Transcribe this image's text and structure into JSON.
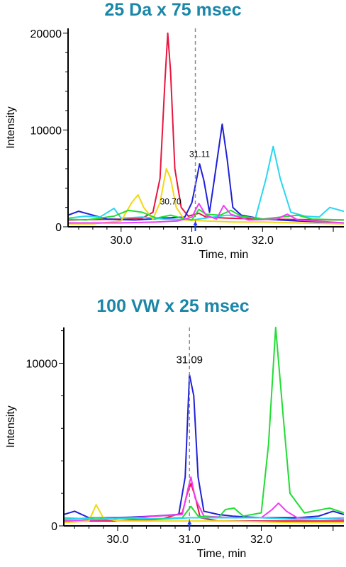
{
  "chart_data": [
    {
      "type": "line",
      "title": "25 Da x 75 msec",
      "xlabel": "Time, min",
      "ylabel": "Intensity",
      "xlim": [
        29.25,
        33.15
      ],
      "ylim": [
        0,
        20500
      ],
      "x_ticks": [
        30.0,
        31.0,
        32.0
      ],
      "x_tick_labels": [
        "30.0",
        "31.0",
        "32.0"
      ],
      "y_ticks": [
        0,
        10000,
        20000
      ],
      "y_tick_labels": [
        "0",
        "10000",
        "20000"
      ],
      "marker_x": 31.05,
      "annotations": [
        {
          "text": "31.11",
          "x": 31.11,
          "y": 7200
        },
        {
          "text": "30.70",
          "x": 30.7,
          "y": 2300
        }
      ],
      "grid": false,
      "series": [
        {
          "color": "#e8163f",
          "points": [
            [
              29.25,
              700
            ],
            [
              29.6,
              750
            ],
            [
              30.0,
              800
            ],
            [
              30.3,
              900
            ],
            [
              30.45,
              1500
            ],
            [
              30.55,
              5000
            ],
            [
              30.62,
              15000
            ],
            [
              30.66,
              20000
            ],
            [
              30.7,
              16000
            ],
            [
              30.76,
              6000
            ],
            [
              30.85,
              2000
            ],
            [
              30.95,
              1100
            ],
            [
              31.1,
              1400
            ],
            [
              31.2,
              1000
            ],
            [
              31.5,
              900
            ],
            [
              32.0,
              800
            ],
            [
              32.5,
              750
            ],
            [
              33.15,
              700
            ]
          ]
        },
        {
          "color": "#2020d8",
          "points": [
            [
              29.25,
              1200
            ],
            [
              29.4,
              1600
            ],
            [
              29.55,
              1300
            ],
            [
              29.8,
              800
            ],
            [
              30.2,
              700
            ],
            [
              30.6,
              900
            ],
            [
              30.9,
              1000
            ],
            [
              31.0,
              2500
            ],
            [
              31.07,
              5000
            ],
            [
              31.11,
              6500
            ],
            [
              31.17,
              4800
            ],
            [
              31.25,
              1500
            ],
            [
              31.32,
              5000
            ],
            [
              31.43,
              10600
            ],
            [
              31.5,
              7000
            ],
            [
              31.58,
              2000
            ],
            [
              31.7,
              1200
            ],
            [
              32.0,
              800
            ],
            [
              32.5,
              600
            ],
            [
              33.15,
              400
            ]
          ]
        },
        {
          "color": "#2ad6f0",
          "points": [
            [
              29.25,
              900
            ],
            [
              29.5,
              1100
            ],
            [
              29.7,
              1000
            ],
            [
              29.9,
              1900
            ],
            [
              30.0,
              900
            ],
            [
              30.3,
              1000
            ],
            [
              30.6,
              800
            ],
            [
              31.0,
              700
            ],
            [
              31.5,
              1200
            ],
            [
              31.9,
              900
            ],
            [
              32.05,
              5000
            ],
            [
              32.15,
              8300
            ],
            [
              32.25,
              5000
            ],
            [
              32.4,
              1500
            ],
            [
              32.6,
              1100
            ],
            [
              32.8,
              1000
            ],
            [
              32.95,
              2000
            ],
            [
              33.15,
              1600
            ]
          ]
        },
        {
          "color": "#f5d712",
          "points": [
            [
              29.25,
              300
            ],
            [
              29.6,
              300
            ],
            [
              30.0,
              600
            ],
            [
              30.15,
              2500
            ],
            [
              30.24,
              3300
            ],
            [
              30.32,
              2000
            ],
            [
              30.45,
              800
            ],
            [
              30.55,
              2500
            ],
            [
              30.64,
              6000
            ],
            [
              30.7,
              5000
            ],
            [
              30.78,
              2000
            ],
            [
              30.9,
              700
            ],
            [
              31.2,
              600
            ],
            [
              31.6,
              500
            ],
            [
              32.0,
              500
            ],
            [
              32.5,
              400
            ],
            [
              33.15,
              300
            ]
          ]
        },
        {
          "color": "#22dd33",
          "points": [
            [
              29.25,
              800
            ],
            [
              29.5,
              700
            ],
            [
              29.9,
              1100
            ],
            [
              30.1,
              1700
            ],
            [
              30.3,
              1500
            ],
            [
              30.5,
              900
            ],
            [
              30.7,
              1200
            ],
            [
              30.85,
              900
            ],
            [
              31.0,
              700
            ],
            [
              31.1,
              1800
            ],
            [
              31.2,
              1300
            ],
            [
              31.4,
              1200
            ],
            [
              31.55,
              1700
            ],
            [
              31.7,
              1100
            ],
            [
              32.0,
              800
            ],
            [
              32.5,
              1200
            ],
            [
              32.7,
              800
            ],
            [
              33.15,
              700
            ]
          ]
        },
        {
          "color": "#f23bf5",
          "points": [
            [
              29.25,
              400
            ],
            [
              29.6,
              400
            ],
            [
              30.0,
              400
            ],
            [
              30.5,
              500
            ],
            [
              30.8,
              600
            ],
            [
              31.0,
              1000
            ],
            [
              31.1,
              2400
            ],
            [
              31.2,
              1200
            ],
            [
              31.35,
              800
            ],
            [
              31.45,
              2200
            ],
            [
              31.55,
              1300
            ],
            [
              31.8,
              700
            ],
            [
              32.2,
              800
            ],
            [
              32.35,
              1300
            ],
            [
              32.5,
              700
            ],
            [
              33.15,
              400
            ]
          ]
        }
      ]
    },
    {
      "type": "line",
      "title": "100 VW x 25 msec",
      "xlabel": "Time, min",
      "ylabel": "Intensity",
      "xlim": [
        29.25,
        33.15
      ],
      "ylim": [
        0,
        12200
      ],
      "x_ticks": [
        30.0,
        31.0,
        32.0
      ],
      "x_tick_labels": [
        "30.0",
        "31.0",
        "32.0"
      ],
      "y_ticks": [
        0,
        10000
      ],
      "y_tick_labels": [
        "0",
        "10000"
      ],
      "marker_x": 31.0,
      "annotations": [
        {
          "text": "31.09",
          "x": 31.0,
          "y": 10000
        }
      ],
      "grid": false,
      "series": [
        {
          "color": "#2020d8",
          "points": [
            [
              29.25,
              700
            ],
            [
              29.4,
              900
            ],
            [
              29.6,
              500
            ],
            [
              30.0,
              500
            ],
            [
              30.5,
              600
            ],
            [
              30.85,
              700
            ],
            [
              30.94,
              3000
            ],
            [
              31.0,
              9300
            ],
            [
              31.06,
              8000
            ],
            [
              31.12,
              3000
            ],
            [
              31.2,
              900
            ],
            [
              31.4,
              700
            ],
            [
              31.6,
              600
            ],
            [
              32.0,
              500
            ],
            [
              32.5,
              500
            ],
            [
              32.8,
              600
            ],
            [
              33.0,
              900
            ],
            [
              33.15,
              700
            ]
          ]
        },
        {
          "color": "#e8163f",
          "points": [
            [
              29.25,
              300
            ],
            [
              30.0,
              300
            ],
            [
              30.6,
              400
            ],
            [
              30.9,
              800
            ],
            [
              30.97,
              2000
            ],
            [
              31.02,
              2600
            ],
            [
              31.08,
              1800
            ],
            [
              31.15,
              500
            ],
            [
              31.4,
              300
            ],
            [
              32.0,
              300
            ],
            [
              32.5,
              300
            ],
            [
              33.15,
              300
            ]
          ]
        },
        {
          "color": "#f23bf5",
          "points": [
            [
              29.25,
              300
            ],
            [
              29.9,
              400
            ],
            [
              30.9,
              700
            ],
            [
              30.98,
              2300
            ],
            [
              31.02,
              3000
            ],
            [
              31.08,
              1700
            ],
            [
              31.2,
              600
            ],
            [
              31.6,
              500
            ],
            [
              32.0,
              500
            ],
            [
              32.15,
              1000
            ],
            [
              32.24,
              1400
            ],
            [
              32.35,
              900
            ],
            [
              32.5,
              500
            ],
            [
              33.15,
              400
            ]
          ]
        },
        {
          "color": "#f5d712",
          "points": [
            [
              29.25,
              200
            ],
            [
              29.6,
              300
            ],
            [
              29.7,
              1300
            ],
            [
              29.8,
              500
            ],
            [
              30.0,
              300
            ],
            [
              30.5,
              300
            ],
            [
              31.0,
              300
            ],
            [
              31.5,
              300
            ],
            [
              32.0,
              250
            ],
            [
              32.5,
              200
            ],
            [
              33.15,
              200
            ]
          ]
        },
        {
          "color": "#22dd33",
          "points": [
            [
              29.25,
              400
            ],
            [
              29.7,
              500
            ],
            [
              30.3,
              400
            ],
            [
              30.9,
              500
            ],
            [
              31.02,
              1200
            ],
            [
              31.12,
              600
            ],
            [
              31.4,
              500
            ],
            [
              31.5,
              1000
            ],
            [
              31.62,
              1100
            ],
            [
              31.75,
              600
            ],
            [
              32.0,
              800
            ],
            [
              32.1,
              5000
            ],
            [
              32.2,
              12200
            ],
            [
              32.3,
              7000
            ],
            [
              32.4,
              2000
            ],
            [
              32.6,
              800
            ],
            [
              32.95,
              1100
            ],
            [
              33.15,
              800
            ]
          ]
        },
        {
          "color": "#2ad6f0",
          "points": [
            [
              29.25,
              500
            ],
            [
              29.7,
              400
            ],
            [
              30.2,
              500
            ],
            [
              30.6,
              400
            ],
            [
              31.0,
              500
            ],
            [
              31.5,
              500
            ],
            [
              32.0,
              500
            ],
            [
              32.5,
              400
            ],
            [
              33.15,
              500
            ]
          ]
        }
      ]
    }
  ]
}
